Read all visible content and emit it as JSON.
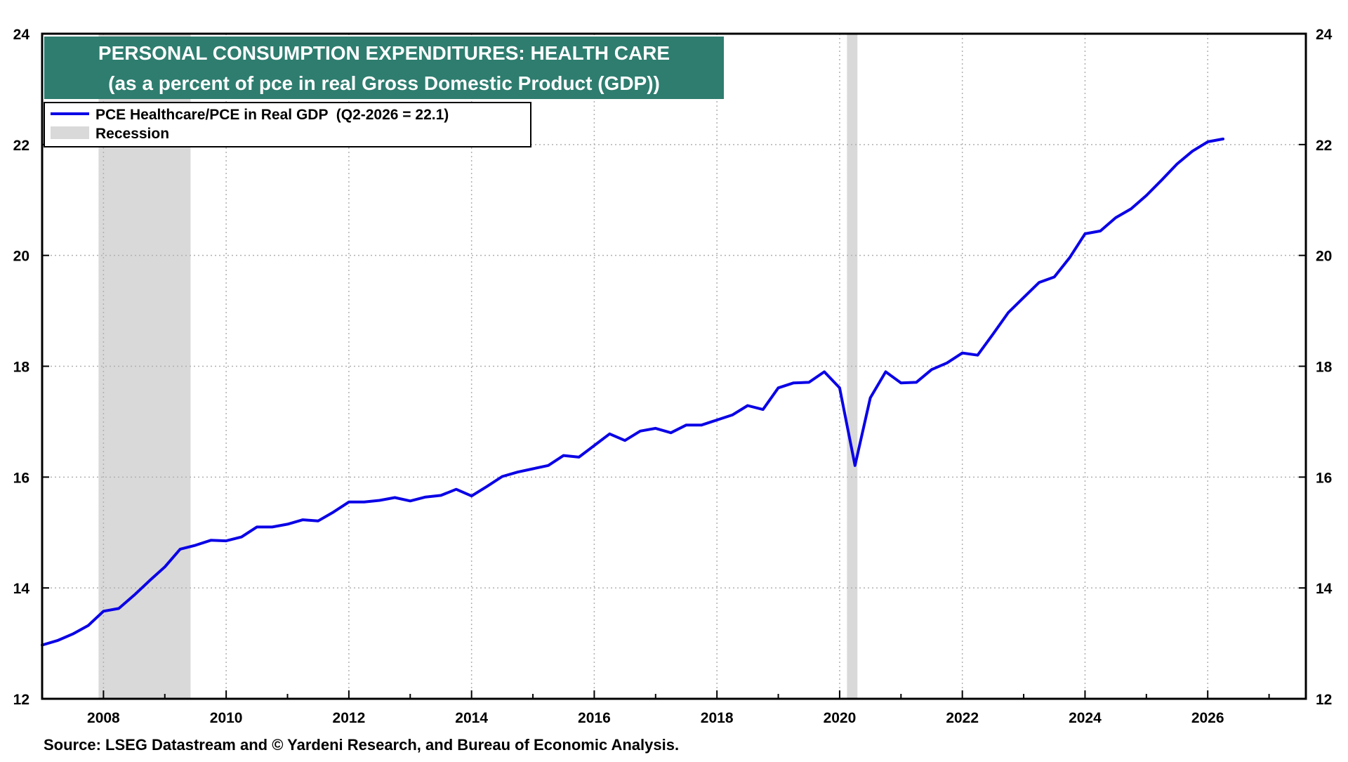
{
  "chart_data": {
    "type": "line",
    "title": "PERSONAL CONSUMPTION EXPENDITURES: HEALTH CARE",
    "subtitle": "(as a percent of pce in real Gross Domestic Product (GDP))",
    "source": "Source: LSEG Datastream and © Yardeni Research, and Bureau of Economic Analysis.",
    "xlim": [
      2007.0,
      2027.6
    ],
    "ylim": [
      12,
      24
    ],
    "x_ticks": [
      "2008",
      "2010",
      "2012",
      "2014",
      "2016",
      "2018",
      "2020",
      "2022",
      "2024",
      "2026"
    ],
    "x_tick_values": [
      2008,
      2010,
      2012,
      2014,
      2016,
      2018,
      2020,
      2022,
      2024,
      2026
    ],
    "y_ticks": [
      "12",
      "14",
      "16",
      "18",
      "20",
      "22",
      "24"
    ],
    "y_tick_values": [
      12,
      14,
      16,
      18,
      20,
      22,
      24
    ],
    "grid": true,
    "legend_position": "top-left",
    "colors": {
      "line": "#0a00e6",
      "recession": "#d9d9d9",
      "title_bg": "#2e7d6f",
      "title_text": "#ffffff",
      "axis": "#000000",
      "grid": "#b0b0b0"
    },
    "recessions": [
      {
        "start": 2007.92,
        "end": 2009.42
      },
      {
        "start": 2020.12,
        "end": 2020.29
      }
    ],
    "series": [
      {
        "name": "PCE Healthcare/PCE in Real GDP  (Q2-2026 = 22.1)",
        "x": [
          2007.0,
          2007.25,
          2007.5,
          2007.75,
          2008.0,
          2008.25,
          2008.5,
          2008.75,
          2009.0,
          2009.25,
          2009.5,
          2009.75,
          2010.0,
          2010.25,
          2010.5,
          2010.75,
          2011.0,
          2011.25,
          2011.5,
          2011.75,
          2012.0,
          2012.25,
          2012.5,
          2012.75,
          2013.0,
          2013.25,
          2013.5,
          2013.75,
          2014.0,
          2014.25,
          2014.5,
          2014.75,
          2015.0,
          2015.25,
          2015.5,
          2015.75,
          2016.0,
          2016.25,
          2016.5,
          2016.75,
          2017.0,
          2017.25,
          2017.5,
          2017.75,
          2018.0,
          2018.25,
          2018.5,
          2018.75,
          2019.0,
          2019.25,
          2019.5,
          2019.75,
          2020.0,
          2020.25,
          2020.5,
          2020.75,
          2021.0,
          2021.25,
          2021.5,
          2021.75,
          2022.0,
          2022.25,
          2022.5,
          2022.75,
          2023.0,
          2023.25,
          2023.5,
          2023.75,
          2024.0,
          2024.25,
          2024.5,
          2024.75,
          2025.0,
          2025.25,
          2025.5,
          2025.75,
          2026.0,
          2026.25
        ],
        "values": [
          12.97,
          13.05,
          13.17,
          13.32,
          13.58,
          13.63,
          13.87,
          14.13,
          14.38,
          14.7,
          14.77,
          14.86,
          14.85,
          14.92,
          15.1,
          15.1,
          15.15,
          15.23,
          15.21,
          15.37,
          15.55,
          15.55,
          15.58,
          15.63,
          15.57,
          15.64,
          15.67,
          15.78,
          15.66,
          15.83,
          16.01,
          16.09,
          16.15,
          16.21,
          16.39,
          16.36,
          16.57,
          16.78,
          16.66,
          16.83,
          16.88,
          16.8,
          16.94,
          16.94,
          17.03,
          17.12,
          17.29,
          17.22,
          17.61,
          17.7,
          17.71,
          17.9,
          17.61,
          16.21,
          17.43,
          17.9,
          17.7,
          17.71,
          17.94,
          18.06,
          18.24,
          18.2,
          18.58,
          18.97,
          19.24,
          19.51,
          19.61,
          19.96,
          20.39,
          20.44,
          20.68,
          20.84,
          21.08,
          21.36,
          21.65,
          21.88,
          22.05,
          22.1
        ]
      }
    ],
    "legend": {
      "series_label": "PCE Healthcare/PCE in Real GDP  (Q2-2026 = 22.1)",
      "recession_label": "Recession"
    }
  }
}
